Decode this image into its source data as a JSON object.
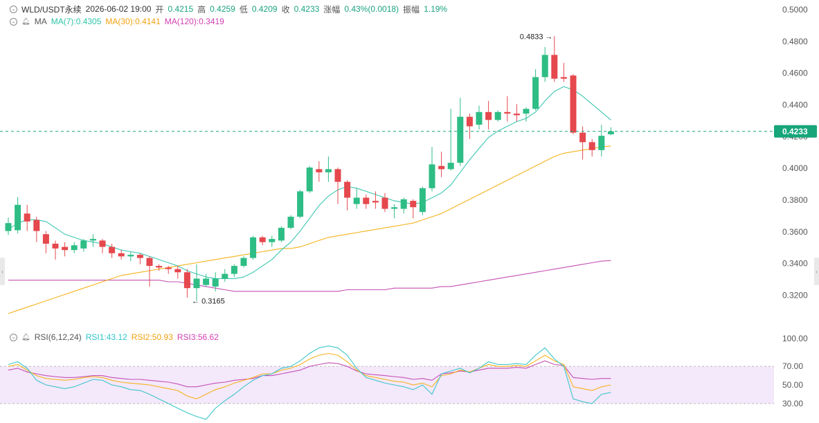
{
  "header": {
    "symbol": "WLD/USDT永续",
    "time": "2026-06-02 19:00",
    "open_label": "开",
    "open": "0.4215",
    "high_label": "高",
    "high": "0.4259",
    "low_label": "低",
    "low": "0.4209",
    "close_label": "收",
    "close": "0.4233",
    "change_label": "涨幅",
    "change": "0.43%(0.0018)",
    "amplitude_label": "振幅",
    "amplitude": "1.19%"
  },
  "ma_legend": {
    "label": "MA",
    "ma7": "MA(7):0.4305",
    "ma30": "MA(30):0.4141",
    "ma120": "MA(120):0.3419"
  },
  "rsi_legend": {
    "label": "RSI(6,12,24)",
    "rsi1": "RSI1:43.12",
    "rsi2": "RSI2:50.93",
    "rsi3": "RSI3:56.62"
  },
  "chart_data": [
    {
      "type": "candlestick",
      "y_ticks": [
        "0.5000",
        "0.4800",
        "0.4600",
        "0.4400",
        "0.4200",
        "0.4000",
        "0.3800",
        "0.3600",
        "0.3400",
        "0.3200"
      ],
      "ylim": [
        0.308,
        0.5
      ],
      "current_price": "0.4233",
      "high_annotation": "0.4833",
      "low_annotation": "0.3165",
      "colors": {
        "up": "#2ebd85",
        "down": "#e5484d",
        "ma7": "#3cc6b0",
        "ma30": "#f5b21b",
        "ma120": "#c44fb5",
        "current": "#17a67a"
      },
      "candles": [
        [
          0.3605,
          0.3655,
          0.358,
          0.369
        ],
        [
          0.361,
          0.377,
          0.359,
          0.382
        ],
        [
          0.3715,
          0.3665,
          0.3605,
          0.377
        ],
        [
          0.3675,
          0.3605,
          0.3535,
          0.3695
        ],
        [
          0.3585,
          0.3525,
          0.3465,
          0.3605
        ],
        [
          0.3525,
          0.3495,
          0.3425,
          0.3545
        ],
        [
          0.3505,
          0.3485,
          0.3445,
          0.3535
        ],
        [
          0.3485,
          0.3515,
          0.3465,
          0.3535
        ],
        [
          0.3495,
          0.3545,
          0.3475,
          0.3555
        ],
        [
          0.3545,
          0.3555,
          0.3505,
          0.3585
        ],
        [
          0.3545,
          0.3505,
          0.3465,
          0.3555
        ],
        [
          0.3505,
          0.3465,
          0.3435,
          0.3525
        ],
        [
          0.3465,
          0.3445,
          0.3425,
          0.3485
        ],
        [
          0.3445,
          0.3455,
          0.3415,
          0.3475
        ],
        [
          0.3455,
          0.3435,
          0.3395,
          0.3465
        ],
        [
          0.3435,
          0.3385,
          0.3255,
          0.3445
        ],
        [
          0.3385,
          0.3375,
          0.3355,
          0.3395
        ],
        [
          0.3375,
          0.3365,
          0.3335,
          0.3385
        ],
        [
          0.3365,
          0.3345,
          0.3305,
          0.3385
        ],
        [
          0.3345,
          0.3245,
          0.3185,
          0.3365
        ],
        [
          0.3245,
          0.3305,
          0.3165,
          0.3395
        ],
        [
          0.3265,
          0.3305,
          0.3255,
          0.3335
        ],
        [
          0.3255,
          0.3305,
          0.3225,
          0.3345
        ],
        [
          0.3305,
          0.3335,
          0.3285,
          0.3365
        ],
        [
          0.3335,
          0.3385,
          0.3315,
          0.3395
        ],
        [
          0.3385,
          0.3435,
          0.3375,
          0.3445
        ],
        [
          0.3435,
          0.3565,
          0.3425,
          0.3575
        ],
        [
          0.3565,
          0.3535,
          0.3515,
          0.3575
        ],
        [
          0.3535,
          0.3555,
          0.3505,
          0.3575
        ],
        [
          0.3545,
          0.3625,
          0.3535,
          0.3635
        ],
        [
          0.3625,
          0.3695,
          0.3615,
          0.3705
        ],
        [
          0.3695,
          0.3855,
          0.3685,
          0.3865
        ],
        [
          0.3855,
          0.4005,
          0.3845,
          0.4015
        ],
        [
          0.3995,
          0.3975,
          0.3915,
          0.4045
        ],
        [
          0.3975,
          0.3995,
          0.3915,
          0.4075
        ],
        [
          0.3995,
          0.3915,
          0.3775,
          0.4005
        ],
        [
          0.3915,
          0.3815,
          0.3735,
          0.3925
        ],
        [
          0.3775,
          0.3815,
          0.3745,
          0.3875
        ],
        [
          0.3815,
          0.3775,
          0.3745,
          0.3835
        ],
        [
          0.3795,
          0.3785,
          0.3745,
          0.3855
        ],
        [
          0.3815,
          0.3745,
          0.3725,
          0.3845
        ],
        [
          0.3745,
          0.3755,
          0.3685,
          0.3775
        ],
        [
          0.3745,
          0.3805,
          0.3715,
          0.3815
        ],
        [
          0.3795,
          0.3755,
          0.3685,
          0.3805
        ],
        [
          0.3725,
          0.3875,
          0.3705,
          0.3885
        ],
        [
          0.3875,
          0.4025,
          0.3855,
          0.4135
        ],
        [
          0.4015,
          0.3995,
          0.3945,
          0.4105
        ],
        [
          0.3995,
          0.4035,
          0.3985,
          0.4375
        ],
        [
          0.4035,
          0.4325,
          0.4015,
          0.4445
        ],
        [
          0.4325,
          0.4265,
          0.4185,
          0.4345
        ],
        [
          0.4275,
          0.4355,
          0.4245,
          0.4395
        ],
        [
          0.4355,
          0.4305,
          0.4245,
          0.4425
        ],
        [
          0.4305,
          0.4355,
          0.4295,
          0.4365
        ],
        [
          0.4355,
          0.4345,
          0.4295,
          0.4455
        ],
        [
          0.4345,
          0.4335,
          0.4295,
          0.4405
        ],
        [
          0.4345,
          0.4375,
          0.4295,
          0.4385
        ],
        [
          0.4375,
          0.4575,
          0.4365,
          0.4625
        ],
        [
          0.4575,
          0.4715,
          0.4545,
          0.4765
        ],
        [
          0.4715,
          0.4565,
          0.4545,
          0.4833
        ],
        [
          0.4575,
          0.4565,
          0.4545,
          0.4665
        ],
        [
          0.4585,
          0.4225,
          0.4215,
          0.4595
        ],
        [
          0.4225,
          0.4165,
          0.4055,
          0.4265
        ],
        [
          0.4165,
          0.4115,
          0.4075,
          0.4185
        ],
        [
          0.4115,
          0.4205,
          0.4075,
          0.4275
        ],
        [
          0.4215,
          0.4233,
          0.4209,
          0.4259
        ]
      ],
      "ma7": [
        0.3615,
        0.3655,
        0.3675,
        0.3675,
        0.3665,
        0.3625,
        0.3585,
        0.3565,
        0.3545,
        0.3535,
        0.3525,
        0.3505,
        0.3485,
        0.3475,
        0.3465,
        0.3445,
        0.3425,
        0.3405,
        0.3385,
        0.3355,
        0.3335,
        0.3315,
        0.3305,
        0.3305,
        0.3305,
        0.3315,
        0.3345,
        0.3385,
        0.3425,
        0.3485,
        0.3535,
        0.3605,
        0.3685,
        0.3765,
        0.3825,
        0.3865,
        0.3885,
        0.3875,
        0.3855,
        0.3835,
        0.3815,
        0.3795,
        0.3785,
        0.3775,
        0.3785,
        0.3815,
        0.3845,
        0.3895,
        0.3975,
        0.4055,
        0.4125,
        0.4195,
        0.4235,
        0.4265,
        0.4295,
        0.4315,
        0.4355,
        0.4425,
        0.4485,
        0.4515,
        0.4495,
        0.4455,
        0.4405,
        0.4355,
        0.4305
      ],
      "ma30": [
        0.3085,
        0.3105,
        0.3125,
        0.3145,
        0.3165,
        0.3185,
        0.3205,
        0.3225,
        0.3245,
        0.3265,
        0.3285,
        0.3305,
        0.3325,
        0.3335,
        0.3345,
        0.3355,
        0.3365,
        0.3375,
        0.3385,
        0.3395,
        0.3405,
        0.3415,
        0.3425,
        0.3435,
        0.3445,
        0.3455,
        0.3465,
        0.3475,
        0.3485,
        0.3495,
        0.3495,
        0.3505,
        0.3525,
        0.3545,
        0.3565,
        0.3575,
        0.3585,
        0.3595,
        0.3605,
        0.3615,
        0.3625,
        0.3635,
        0.3645,
        0.3655,
        0.3675,
        0.3695,
        0.3715,
        0.3745,
        0.3775,
        0.3805,
        0.3835,
        0.3865,
        0.3895,
        0.3925,
        0.3955,
        0.3985,
        0.4015,
        0.4045,
        0.4075,
        0.4095,
        0.4105,
        0.4115,
        0.4125,
        0.4135,
        0.4141
      ],
      "ma120": [
        0.3295,
        0.3295,
        0.3295,
        0.3295,
        0.3295,
        0.3295,
        0.3295,
        0.3295,
        0.3295,
        0.3295,
        0.3295,
        0.3295,
        0.3295,
        0.3295,
        0.3295,
        0.3295,
        0.3295,
        0.3285,
        0.3285,
        0.3275,
        0.3265,
        0.3255,
        0.3245,
        0.3235,
        0.3225,
        0.3225,
        0.3225,
        0.3225,
        0.3225,
        0.3225,
        0.3225,
        0.3225,
        0.3225,
        0.3225,
        0.3225,
        0.3225,
        0.3235,
        0.3235,
        0.3235,
        0.3235,
        0.3235,
        0.3245,
        0.3245,
        0.3245,
        0.3245,
        0.3245,
        0.3255,
        0.3255,
        0.3265,
        0.3275,
        0.3285,
        0.3295,
        0.3305,
        0.3315,
        0.3325,
        0.3335,
        0.3345,
        0.3355,
        0.3365,
        0.3375,
        0.3385,
        0.3395,
        0.3405,
        0.3415,
        0.3419
      ]
    },
    {
      "type": "line",
      "y_ticks": [
        "100.00",
        "70.00",
        "50.00",
        "30.00"
      ],
      "ylim": [
        12,
        100
      ],
      "band": [
        30,
        70
      ],
      "colors": {
        "rsi1": "#3cc6c9",
        "rsi2": "#f5b21b",
        "rsi3": "#c44fb5",
        "band": "#f4e8fb"
      },
      "rsi1": [
        72,
        75,
        68,
        55,
        50,
        48,
        46,
        48,
        52,
        56,
        55,
        50,
        48,
        45,
        44,
        40,
        35,
        30,
        25,
        20,
        16,
        13,
        25,
        33,
        40,
        48,
        55,
        60,
        62,
        68,
        70,
        76,
        84,
        90,
        92,
        90,
        82,
        68,
        58,
        55,
        52,
        50,
        48,
        45,
        50,
        40,
        62,
        65,
        68,
        63,
        68,
        75,
        72,
        72,
        73,
        72,
        82,
        90,
        78,
        70,
        35,
        32,
        30,
        40,
        42
      ],
      "rsi2": [
        70,
        72,
        66,
        60,
        57,
        56,
        55,
        56,
        58,
        59,
        58,
        55,
        53,
        52,
        51,
        50,
        48,
        46,
        44,
        38,
        35,
        40,
        45,
        48,
        52,
        55,
        58,
        62,
        62,
        66,
        68,
        72,
        78,
        82,
        84,
        82,
        75,
        66,
        60,
        58,
        56,
        54,
        53,
        50,
        52,
        48,
        60,
        62,
        66,
        64,
        68,
        72,
        70,
        70,
        71,
        70,
        76,
        82,
        76,
        72,
        48,
        46,
        44,
        48,
        50
      ],
      "rsi3": [
        66,
        68,
        64,
        62,
        60,
        59,
        58,
        58,
        59,
        60,
        60,
        58,
        57,
        56,
        56,
        55,
        54,
        53,
        51,
        48,
        48,
        50,
        52,
        53,
        55,
        56,
        57,
        60,
        60,
        62,
        64,
        66,
        70,
        72,
        74,
        73,
        70,
        65,
        62,
        61,
        60,
        59,
        58,
        56,
        57,
        55,
        62,
        63,
        65,
        64,
        66,
        68,
        68,
        68,
        69,
        68,
        72,
        76,
        72,
        71,
        58,
        57,
        56,
        57,
        57
      ]
    }
  ]
}
